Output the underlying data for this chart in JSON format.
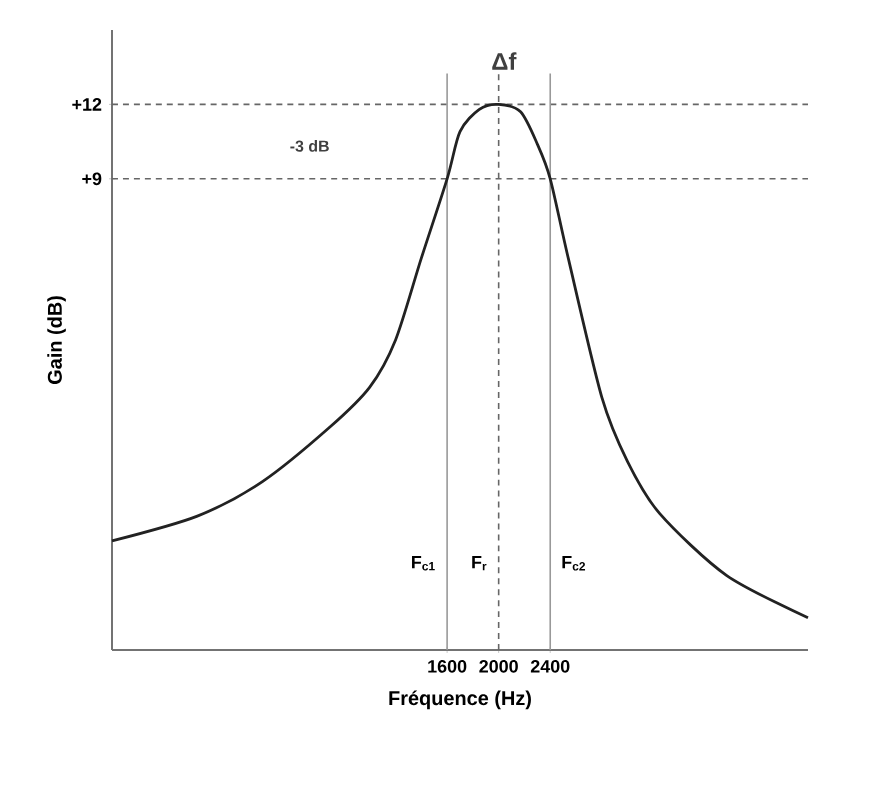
{
  "chart_data": {
    "type": "line",
    "xlabel": "Fréquence (Hz)",
    "ylabel": "Gain (dB)",
    "x": [
      -1000,
      -338,
      170,
      693,
      1000,
      1200,
      1400,
      1600,
      1700,
      1850,
      2000,
      2170,
      2300,
      2400,
      2540,
      2800,
      3000,
      3250,
      3770,
      4400
    ],
    "series": [
      {
        "color": "#222222",
        "values": [
          -5.6,
          -4.6,
          -3.2,
          -1.0,
          0.6,
          2.5,
          5.8,
          9,
          10.9,
          11.8,
          12,
          11.7,
          10.4,
          9,
          5.8,
          0.2,
          -2.4,
          -4.5,
          -7.0,
          -8.7
        ]
      }
    ],
    "xlim": [
      -1000,
      4400
    ],
    "ylim": [
      -10,
      15
    ],
    "xticks": [
      1600,
      2000,
      2400
    ],
    "yticks": [
      {
        "value": 9,
        "label": "+9"
      },
      {
        "value": 12,
        "label": "+12"
      }
    ],
    "marker": "none",
    "line_style": "solid",
    "ref_lines": [
      {
        "axis": "y",
        "value": 12,
        "color": "#666666",
        "line_style": "dashed"
      },
      {
        "axis": "y",
        "value": 9,
        "color": "#666666",
        "line_style": "dashed"
      },
      {
        "axis": "x",
        "value": 1600,
        "label": "F$_{c1}$",
        "color": "#999999",
        "line_style": "solid"
      },
      {
        "axis": "x",
        "value": 2000,
        "label": "F$_{r}$",
        "color": "#666666",
        "line_style": "dashed"
      },
      {
        "axis": "x",
        "value": 2400,
        "label": "F$_{c2}$",
        "color": "#999999",
        "line_style": "solid"
      }
    ],
    "annotations": [
      "Δf",
      "-3 dB"
    ]
  }
}
